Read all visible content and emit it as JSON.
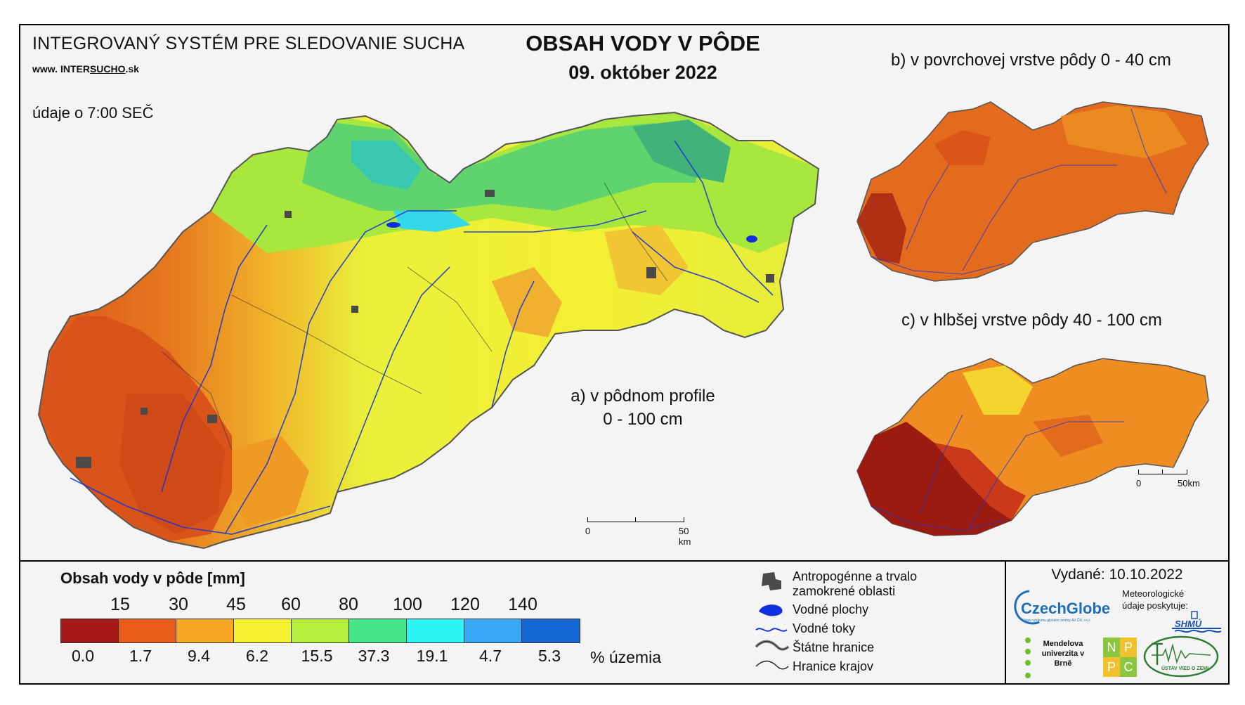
{
  "header": {
    "system_title": "INTEGROVANÝ SYSTÉM PRE SLEDOVANIE SUCHA",
    "url_prefix": "www. ",
    "url_inter": "INTER",
    "url_sucho": "SUCHO",
    "url_suffix": ".sk",
    "time_note": "údaje o 7:00 SEČ",
    "main_title": "OBSAH VODY V PÔDE",
    "date": "09. október 2022"
  },
  "maps": {
    "a_label_line1": "a) v pôdnom profile",
    "a_label_line2": "0 - 100 cm",
    "b_label": "b) v povrchovej vrstve pôdy 0 - 40 cm",
    "c_label": "c) v hlbšej vrstve pôdy 40 - 100 cm",
    "scale_main": {
      "start": "0",
      "end": "50 km"
    },
    "scale_small": {
      "start": "0",
      "end": "50km"
    }
  },
  "legend": {
    "title": "Obsah vody v pôde  [mm]",
    "thresholds": [
      "15",
      "30",
      "45",
      "60",
      "80",
      "100",
      "120",
      "140"
    ],
    "colors": [
      "#a81a1a",
      "#e95d1c",
      "#f5a623",
      "#f6f231",
      "#b3ef3c",
      "#46e58a",
      "#2ff4f6",
      "#38a7f6",
      "#1466d4"
    ],
    "percentages": [
      "0.0",
      "1.7",
      "9.4",
      "6.2",
      "15.5",
      "37.3",
      "19.1",
      "4.7",
      "5.3"
    ],
    "percent_unit": "% územia"
  },
  "symbols": {
    "anthropogenic": "Antropogénne a trvalo zamokrené oblasti",
    "water_bodies": "Vodné plochy",
    "streams": "Vodné toky",
    "state_border": "Štátne hranice",
    "region_border": "Hranice krajov",
    "colors": {
      "anthropogenic": "#4a4a4a",
      "water": "#1030e0"
    }
  },
  "footer": {
    "issued": "Vydané: 10.10.2022",
    "czechglobe": "CzechGlobe",
    "czechglobe_sub": "Ústav výzkumu globální změny AV ČR, v.v.i.",
    "meteo_note": "Meteorologické údaje poskytuje:",
    "shmu": "SHMÚ",
    "mendel": "Mendelova univerzita v Brně",
    "nppc": [
      "N",
      "P",
      "P",
      "C"
    ],
    "uvz": "ÚSTAV VIED O ZEMI"
  }
}
